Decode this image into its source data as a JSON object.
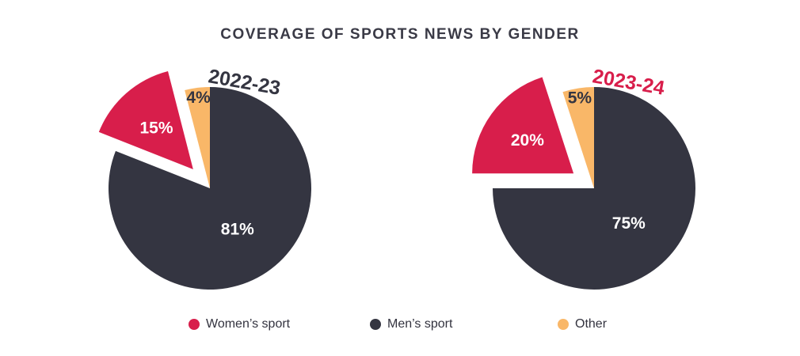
{
  "title": "COVERAGE OF SPORTS NEWS BY GENDER",
  "colors": {
    "womens": "#d81e4b",
    "mens": "#343541",
    "other": "#f9b768",
    "year_2022": "#343541",
    "year_2023": "#d81e4b"
  },
  "legend": [
    {
      "label": "Women’s sport",
      "color": "#d81e4b"
    },
    {
      "label": "Men’s sport",
      "color": "#343541"
    },
    {
      "label": "Other",
      "color": "#f9b768"
    }
  ],
  "chart_data": [
    {
      "type": "pie",
      "title": "2022-23",
      "slices": [
        {
          "name": "Women’s sport",
          "value": 15,
          "label": "15%",
          "color": "#d81e4b",
          "exploded": true
        },
        {
          "name": "Men’s sport",
          "value": 81,
          "label": "81%",
          "color": "#343541",
          "exploded": false
        },
        {
          "name": "Other",
          "value": 4,
          "label": "4%",
          "color": "#f9b768",
          "exploded": false
        }
      ]
    },
    {
      "type": "pie",
      "title": "2023-24",
      "slices": [
        {
          "name": "Women’s sport",
          "value": 20,
          "label": "20%",
          "color": "#d81e4b",
          "exploded": true
        },
        {
          "name": "Men’s sport",
          "value": 75,
          "label": "75%",
          "color": "#343541",
          "exploded": false
        },
        {
          "name": "Other",
          "value": 5,
          "label": "5%",
          "color": "#f9b768",
          "exploded": false
        }
      ]
    }
  ]
}
